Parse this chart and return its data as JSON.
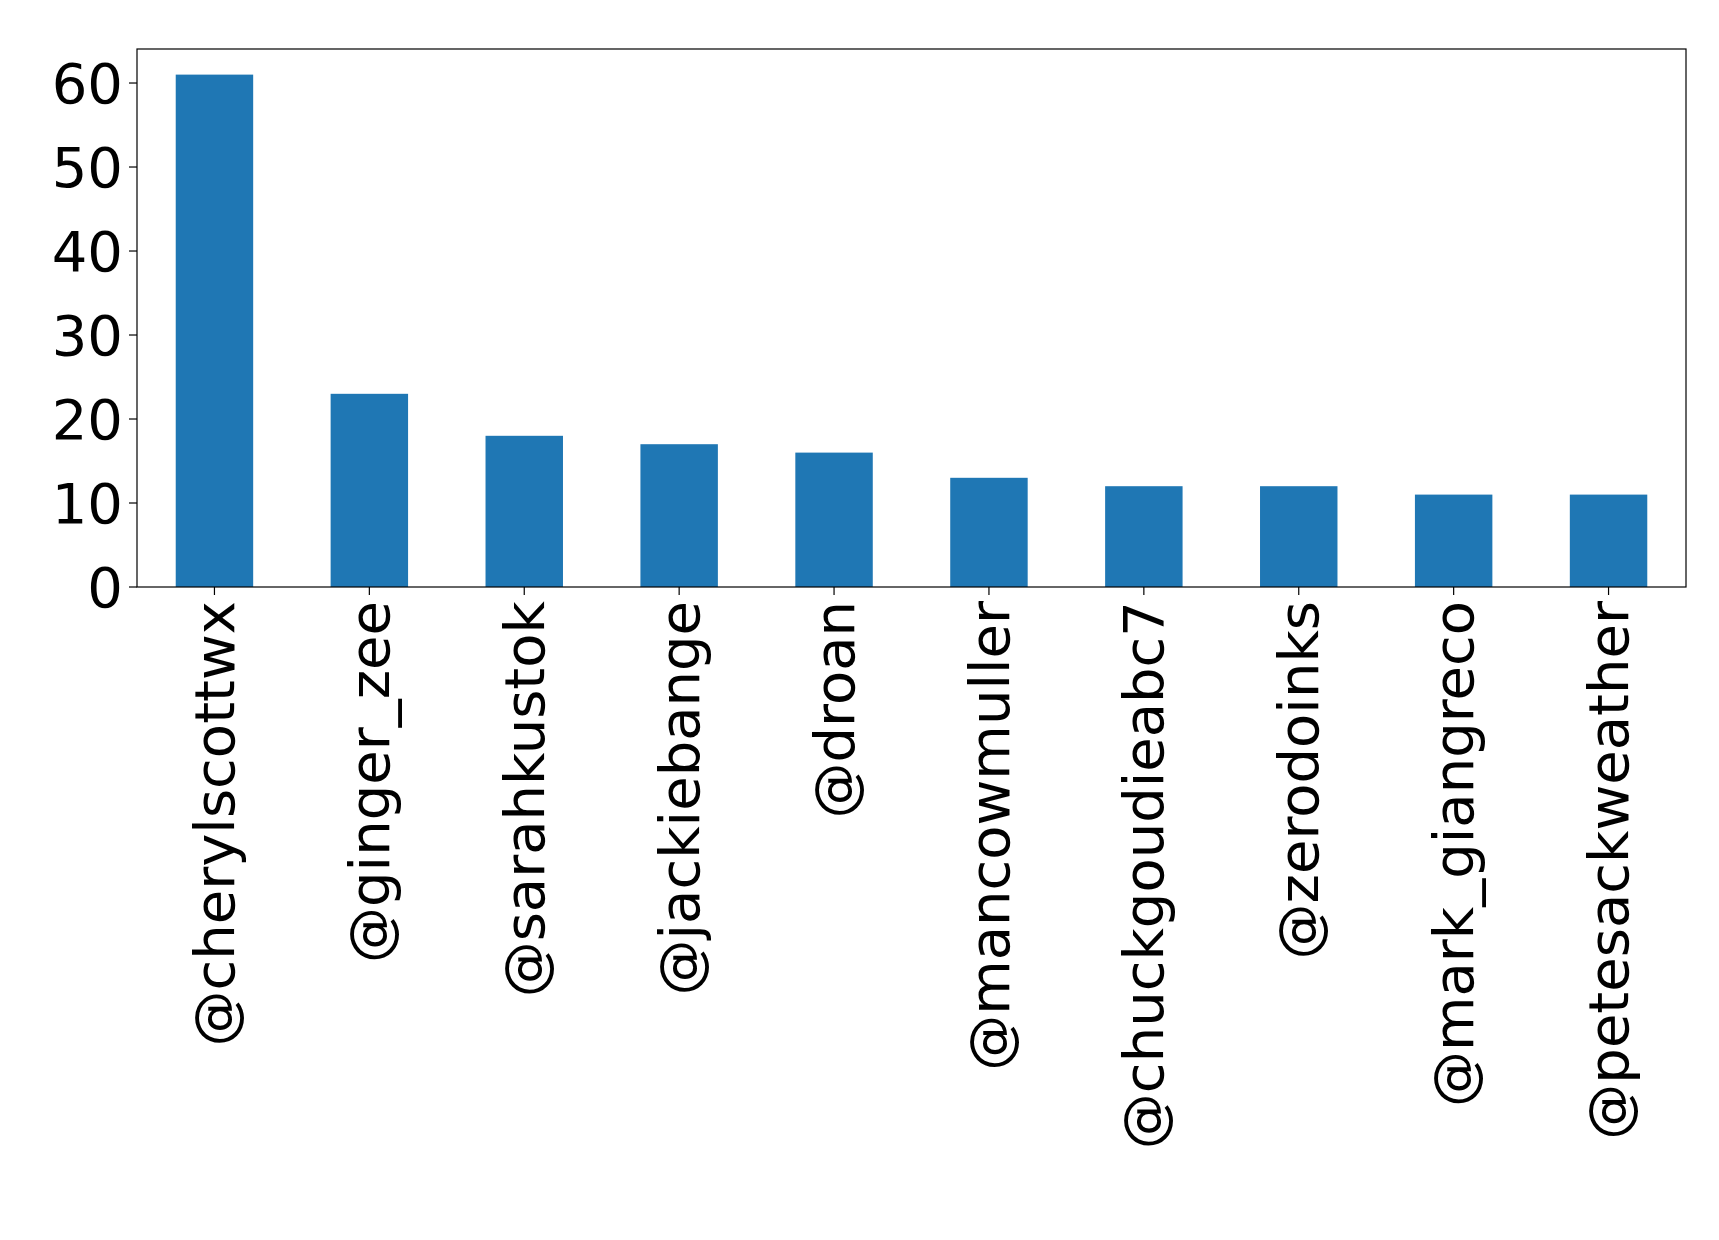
{
  "chart_data": {
    "type": "bar",
    "categories": [
      "@cherylscottwx",
      "@ginger_zee",
      "@sarahkustok",
      "@jackiebange",
      "@droan",
      "@mancowmuller",
      "@chuckgoudieabc7",
      "@zerodoinks",
      "@mark_giangreco",
      "@petesackweather"
    ],
    "values": [
      61,
      23,
      18,
      17,
      16,
      13,
      12,
      12,
      11,
      11
    ],
    "color": "#1f77b4",
    "ylim": [
      0,
      64.05
    ],
    "yticks": [
      0,
      10,
      20,
      30,
      40,
      50,
      60
    ],
    "grid": false
  }
}
